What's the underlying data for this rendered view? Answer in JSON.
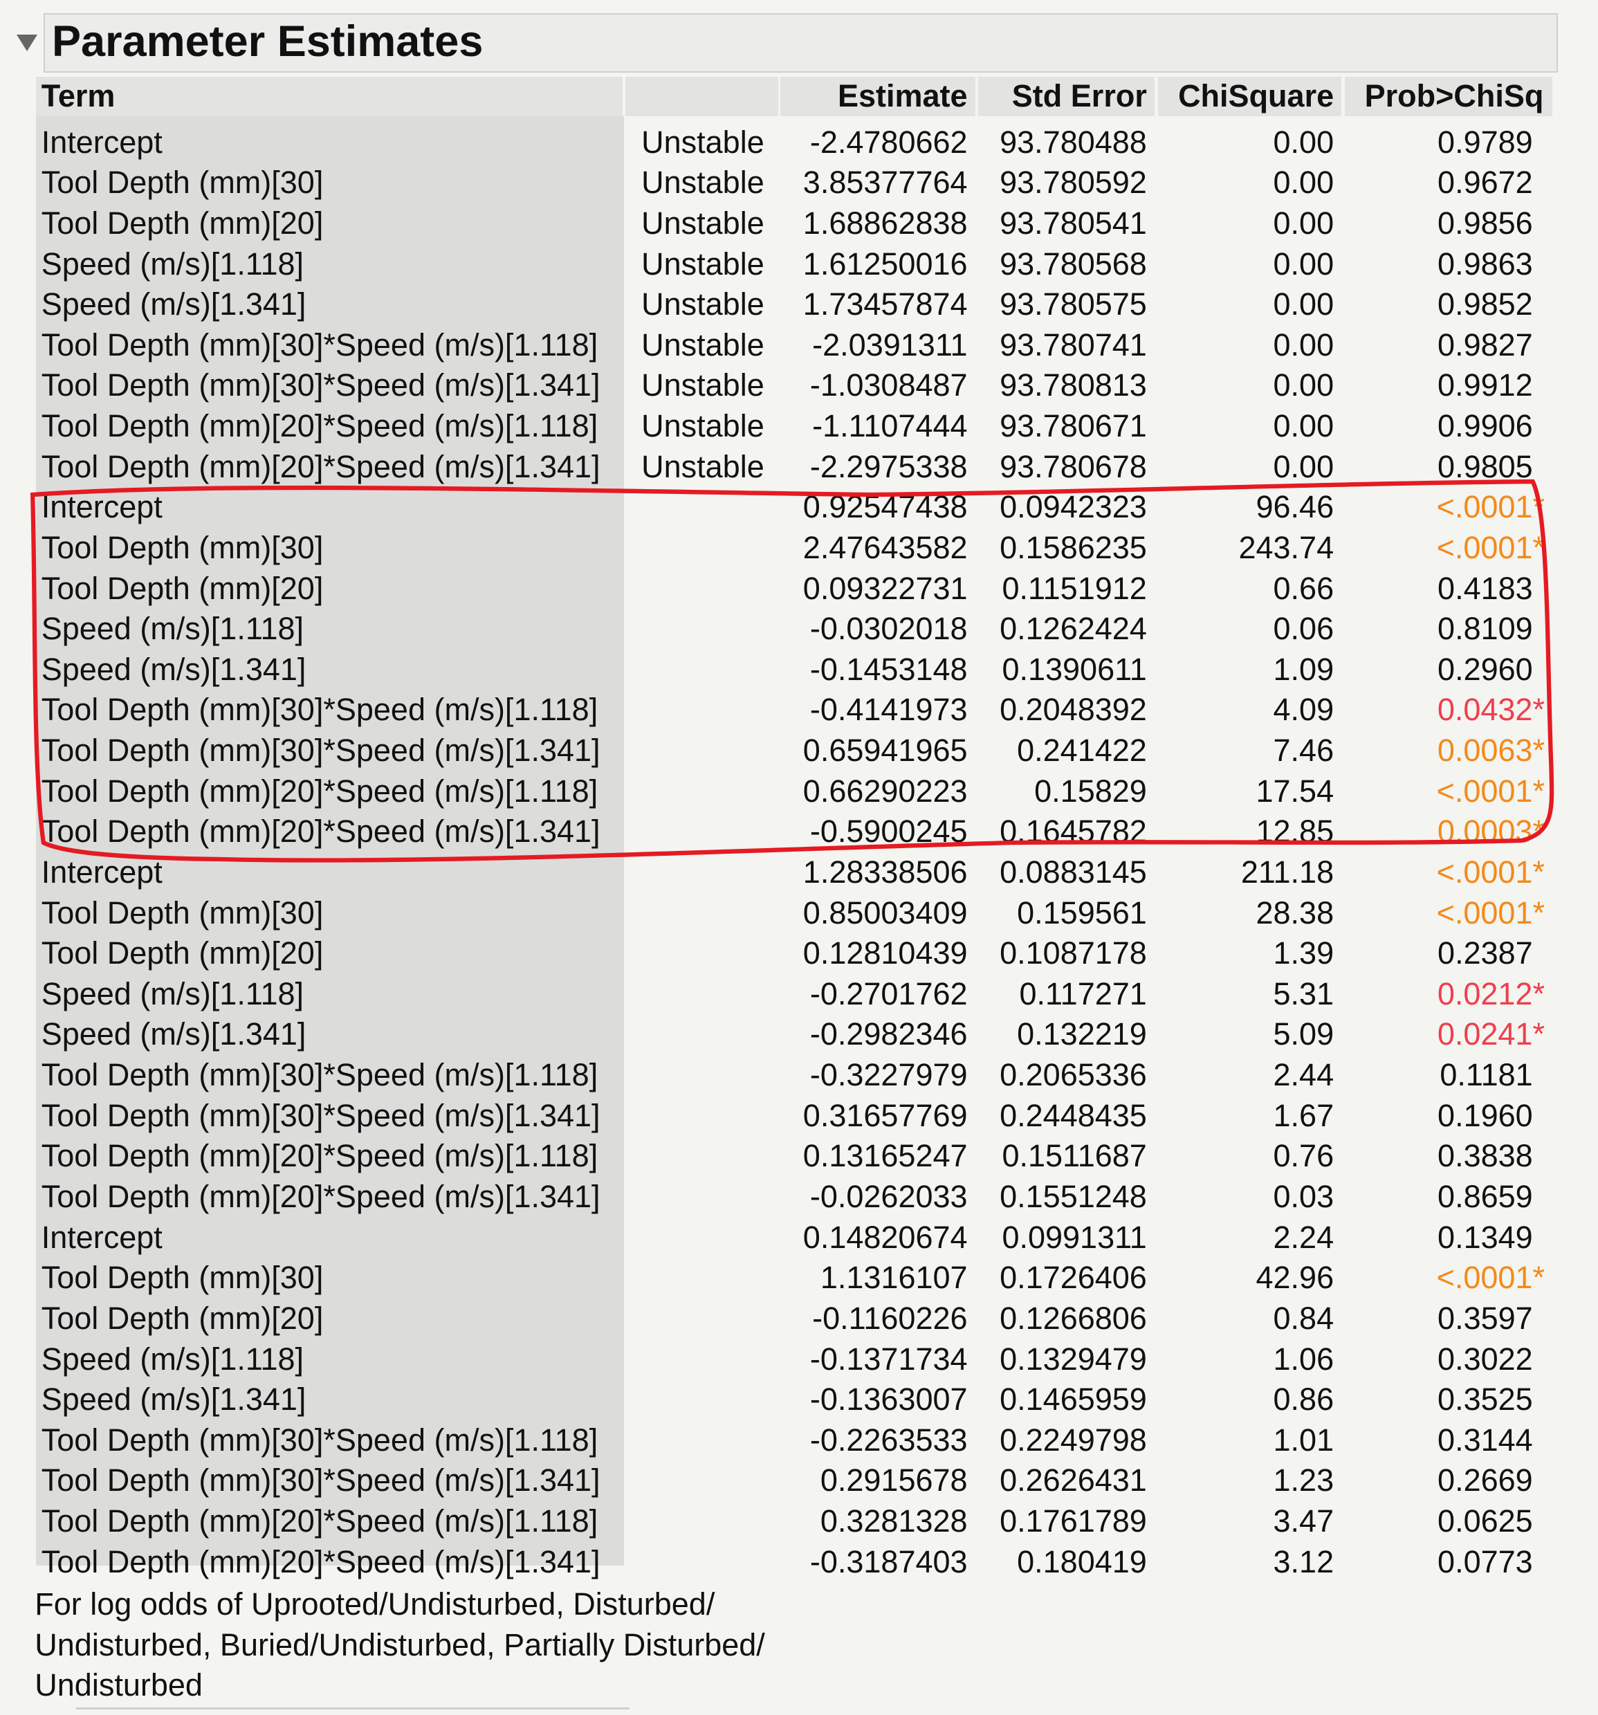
{
  "header": {
    "title": "Parameter Estimates"
  },
  "table": {
    "columns": [
      "Term",
      "Estimate",
      "Std Error",
      "ChiSquare",
      "Prob>ChiSq"
    ],
    "rows": [
      {
        "term": "Intercept",
        "status": "Unstable",
        "estimate": "-2.4780662",
        "std_error": "93.780488",
        "chisquare": "0.00",
        "prob": "0.9789"
      },
      {
        "term": "Tool Depth (mm)[30]",
        "status": "Unstable",
        "estimate": "3.85377764",
        "std_error": "93.780592",
        "chisquare": "0.00",
        "prob": "0.9672"
      },
      {
        "term": "Tool Depth (mm)[20]",
        "status": "Unstable",
        "estimate": "1.68862838",
        "std_error": "93.780541",
        "chisquare": "0.00",
        "prob": "0.9856"
      },
      {
        "term": "Speed (m/s)[1.118]",
        "status": "Unstable",
        "estimate": "1.61250016",
        "std_error": "93.780568",
        "chisquare": "0.00",
        "prob": "0.9863"
      },
      {
        "term": "Speed (m/s)[1.341]",
        "status": "Unstable",
        "estimate": "1.73457874",
        "std_error": "93.780575",
        "chisquare": "0.00",
        "prob": "0.9852"
      },
      {
        "term": "Tool Depth (mm)[30]*Speed (m/s)[1.118]",
        "status": "Unstable",
        "estimate": "-2.0391311",
        "std_error": "93.780741",
        "chisquare": "0.00",
        "prob": "0.9827"
      },
      {
        "term": "Tool Depth (mm)[30]*Speed (m/s)[1.341]",
        "status": "Unstable",
        "estimate": "-1.0308487",
        "std_error": "93.780813",
        "chisquare": "0.00",
        "prob": "0.9912"
      },
      {
        "term": "Tool Depth (mm)[20]*Speed (m/s)[1.118]",
        "status": "Unstable",
        "estimate": "-1.1107444",
        "std_error": "93.780671",
        "chisquare": "0.00",
        "prob": "0.9906"
      },
      {
        "term": "Tool Depth (mm)[20]*Speed (m/s)[1.341]",
        "status": "Unstable",
        "estimate": "-2.2975338",
        "std_error": "93.780678",
        "chisquare": "0.00",
        "prob": "0.9805"
      },
      {
        "term": "Intercept",
        "estimate": "0.92547438",
        "std_error": "0.0942323",
        "chisquare": "96.46",
        "prob": "<.0001*",
        "prob_color": "#f28a1a"
      },
      {
        "term": "Tool Depth (mm)[30]",
        "estimate": "2.47643582",
        "std_error": "0.1586235",
        "chisquare": "243.74",
        "prob": "<.0001*",
        "prob_color": "#f28a1a"
      },
      {
        "term": "Tool Depth (mm)[20]",
        "estimate": "0.09322731",
        "std_error": "0.1151912",
        "chisquare": "0.66",
        "prob": "0.4183"
      },
      {
        "term": "Speed (m/s)[1.118]",
        "estimate": "-0.0302018",
        "std_error": "0.1262424",
        "chisquare": "0.06",
        "prob": "0.8109"
      },
      {
        "term": "Speed (m/s)[1.341]",
        "estimate": "-0.1453148",
        "std_error": "0.1390611",
        "chisquare": "1.09",
        "prob": "0.2960"
      },
      {
        "term": "Tool Depth (mm)[30]*Speed (m/s)[1.118]",
        "estimate": "-0.4141973",
        "std_error": "0.2048392",
        "chisquare": "4.09",
        "prob": "0.0432*",
        "prob_color": "#ee3f4b"
      },
      {
        "term": "Tool Depth (mm)[30]*Speed (m/s)[1.341]",
        "estimate": "0.65941965",
        "std_error": "0.241422",
        "chisquare": "7.46",
        "prob": "0.0063*",
        "prob_color": "#f28a1a"
      },
      {
        "term": "Tool Depth (mm)[20]*Speed (m/s)[1.118]",
        "estimate": "0.66290223",
        "std_error": "0.15829",
        "chisquare": "17.54",
        "prob": "<.0001*",
        "prob_color": "#f28a1a"
      },
      {
        "term": "Tool Depth (mm)[20]*Speed (m/s)[1.341]",
        "estimate": "-0.5900245",
        "std_error": "0.1645782",
        "chisquare": "12.85",
        "prob": "0.0003*",
        "prob_color": "#f28a1a"
      },
      {
        "term": "Intercept",
        "estimate": "1.28338506",
        "std_error": "0.0883145",
        "chisquare": "211.18",
        "prob": "<.0001*",
        "prob_color": "#f28a1a"
      },
      {
        "term": "Tool Depth (mm)[30]",
        "estimate": "0.85003409",
        "std_error": "0.159561",
        "chisquare": "28.38",
        "prob": "<.0001*",
        "prob_color": "#f28a1a"
      },
      {
        "term": "Tool Depth (mm)[20]",
        "estimate": "0.12810439",
        "std_error": "0.1087178",
        "chisquare": "1.39",
        "prob": "0.2387"
      },
      {
        "term": "Speed (m/s)[1.118]",
        "estimate": "-0.2701762",
        "std_error": "0.117271",
        "chisquare": "5.31",
        "prob": "0.0212*",
        "prob_color": "#ee3f4b"
      },
      {
        "term": "Speed (m/s)[1.341]",
        "estimate": "-0.2982346",
        "std_error": "0.132219",
        "chisquare": "5.09",
        "prob": "0.0241*",
        "prob_color": "#ee3f4b"
      },
      {
        "term": "Tool Depth (mm)[30]*Speed (m/s)[1.118]",
        "estimate": "-0.3227979",
        "std_error": "0.2065336",
        "chisquare": "2.44",
        "prob": "0.1181"
      },
      {
        "term": "Tool Depth (mm)[30]*Speed (m/s)[1.341]",
        "estimate": "0.31657769",
        "std_error": "0.2448435",
        "chisquare": "1.67",
        "prob": "0.1960"
      },
      {
        "term": "Tool Depth (mm)[20]*Speed (m/s)[1.118]",
        "estimate": "0.13165247",
        "std_error": "0.1511687",
        "chisquare": "0.76",
        "prob": "0.3838"
      },
      {
        "term": "Tool Depth (mm)[20]*Speed (m/s)[1.341]",
        "estimate": "-0.0262033",
        "std_error": "0.1551248",
        "chisquare": "0.03",
        "prob": "0.8659"
      },
      {
        "term": "Intercept",
        "estimate": "0.14820674",
        "std_error": "0.0991311",
        "chisquare": "2.24",
        "prob": "0.1349"
      },
      {
        "term": "Tool Depth (mm)[30]",
        "estimate": "1.1316107",
        "std_error": "0.1726406",
        "chisquare": "42.96",
        "prob": "<.0001*",
        "prob_color": "#f28a1a"
      },
      {
        "term": "Tool Depth (mm)[20]",
        "estimate": "-0.1160226",
        "std_error": "0.1266806",
        "chisquare": "0.84",
        "prob": "0.3597"
      },
      {
        "term": "Speed (m/s)[1.118]",
        "estimate": "-0.1371734",
        "std_error": "0.1329479",
        "chisquare": "1.06",
        "prob": "0.3022"
      },
      {
        "term": "Speed (m/s)[1.341]",
        "estimate": "-0.1363007",
        "std_error": "0.1465959",
        "chisquare": "0.86",
        "prob": "0.3525"
      },
      {
        "term": "Tool Depth (mm)[30]*Speed (m/s)[1.118]",
        "estimate": "-0.2263533",
        "std_error": "0.2249798",
        "chisquare": "1.01",
        "prob": "0.3144"
      },
      {
        "term": "Tool Depth (mm)[30]*Speed (m/s)[1.341]",
        "estimate": "0.2915678",
        "std_error": "0.2626431",
        "chisquare": "1.23",
        "prob": "0.2669"
      },
      {
        "term": "Tool Depth (mm)[20]*Speed (m/s)[1.118]",
        "estimate": "0.3281328",
        "std_error": "0.1761789",
        "chisquare": "3.47",
        "prob": "0.0625"
      },
      {
        "term": "Tool Depth (mm)[20]*Speed (m/s)[1.341]",
        "estimate": "-0.3187403",
        "std_error": "0.180419",
        "chisquare": "3.12",
        "prob": "0.0773"
      }
    ]
  },
  "footer": {
    "lines": [
      "For log odds of Uprooted/Undisturbed, Disturbed/",
      "Undisturbed, Buried/Undisturbed, Partially Disturbed/",
      "Undisturbed"
    ]
  }
}
